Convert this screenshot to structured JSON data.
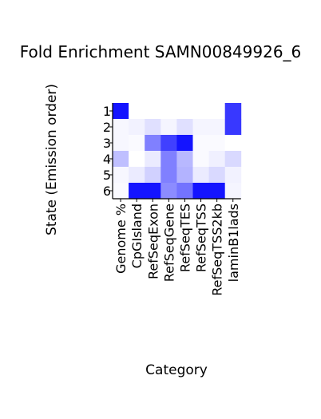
{
  "chart_data": {
    "type": "heatmap",
    "title": "Fold Enrichment SAMN00849926_6",
    "xlabel": "Category",
    "ylabel": "State (Emission order)",
    "categories": [
      "Genome %",
      "CpGIsland",
      "RefSeqExon",
      "RefSeqGene",
      "RefSeqTES",
      "RefSeqTSS",
      "RefSeqTSS2kb",
      "laminB1lads"
    ],
    "states": [
      "1",
      "2",
      "3",
      "4",
      "5",
      "6"
    ],
    "intensity": [
      [
        0.92,
        0.0,
        0.0,
        0.0,
        0.0,
        0.0,
        0.0,
        0.78
      ],
      [
        0.03,
        0.05,
        0.12,
        0.04,
        0.12,
        0.04,
        0.04,
        0.78
      ],
      [
        0.03,
        0.02,
        0.5,
        0.75,
        0.92,
        0.02,
        0.02,
        0.0
      ],
      [
        0.25,
        0.0,
        0.08,
        0.5,
        0.28,
        0.02,
        0.06,
        0.15
      ],
      [
        0.03,
        0.08,
        0.18,
        0.5,
        0.3,
        0.08,
        0.15,
        0.05
      ],
      [
        0.02,
        0.92,
        0.92,
        0.45,
        0.55,
        0.92,
        0.92,
        0.04
      ]
    ],
    "color_range": [
      "#ffffff",
      "#0000ff"
    ]
  }
}
